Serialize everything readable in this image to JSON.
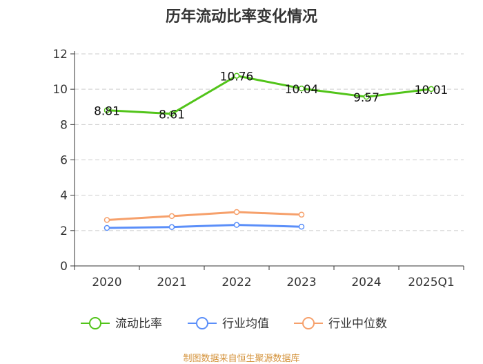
{
  "chart_data": {
    "type": "line",
    "title": "历年流动比率变化情况",
    "categories": [
      "2020",
      "2021",
      "2022",
      "2023",
      "2024",
      "2025Q1"
    ],
    "ylim": [
      0,
      12
    ],
    "yticks": [
      0,
      2,
      4,
      6,
      8,
      10,
      12
    ],
    "grid": true,
    "legend_position": "bottom",
    "series": [
      {
        "name": "流动比率",
        "color": "#52c41a",
        "values": [
          8.81,
          8.61,
          10.76,
          10.04,
          9.57,
          10.01
        ],
        "labels": [
          "8.81",
          "8.61",
          "10.76",
          "10.04",
          "9.57",
          "10.01"
        ]
      },
      {
        "name": "行业均值",
        "color": "#5b8ff9",
        "values": [
          2.15,
          2.2,
          2.32,
          2.22,
          null,
          null
        ]
      },
      {
        "name": "行业中位数",
        "color": "#f6a06b",
        "values": [
          2.6,
          2.82,
          3.05,
          2.9,
          null,
          null
        ]
      }
    ],
    "source": "制图数据来自恒生聚源数据库"
  }
}
